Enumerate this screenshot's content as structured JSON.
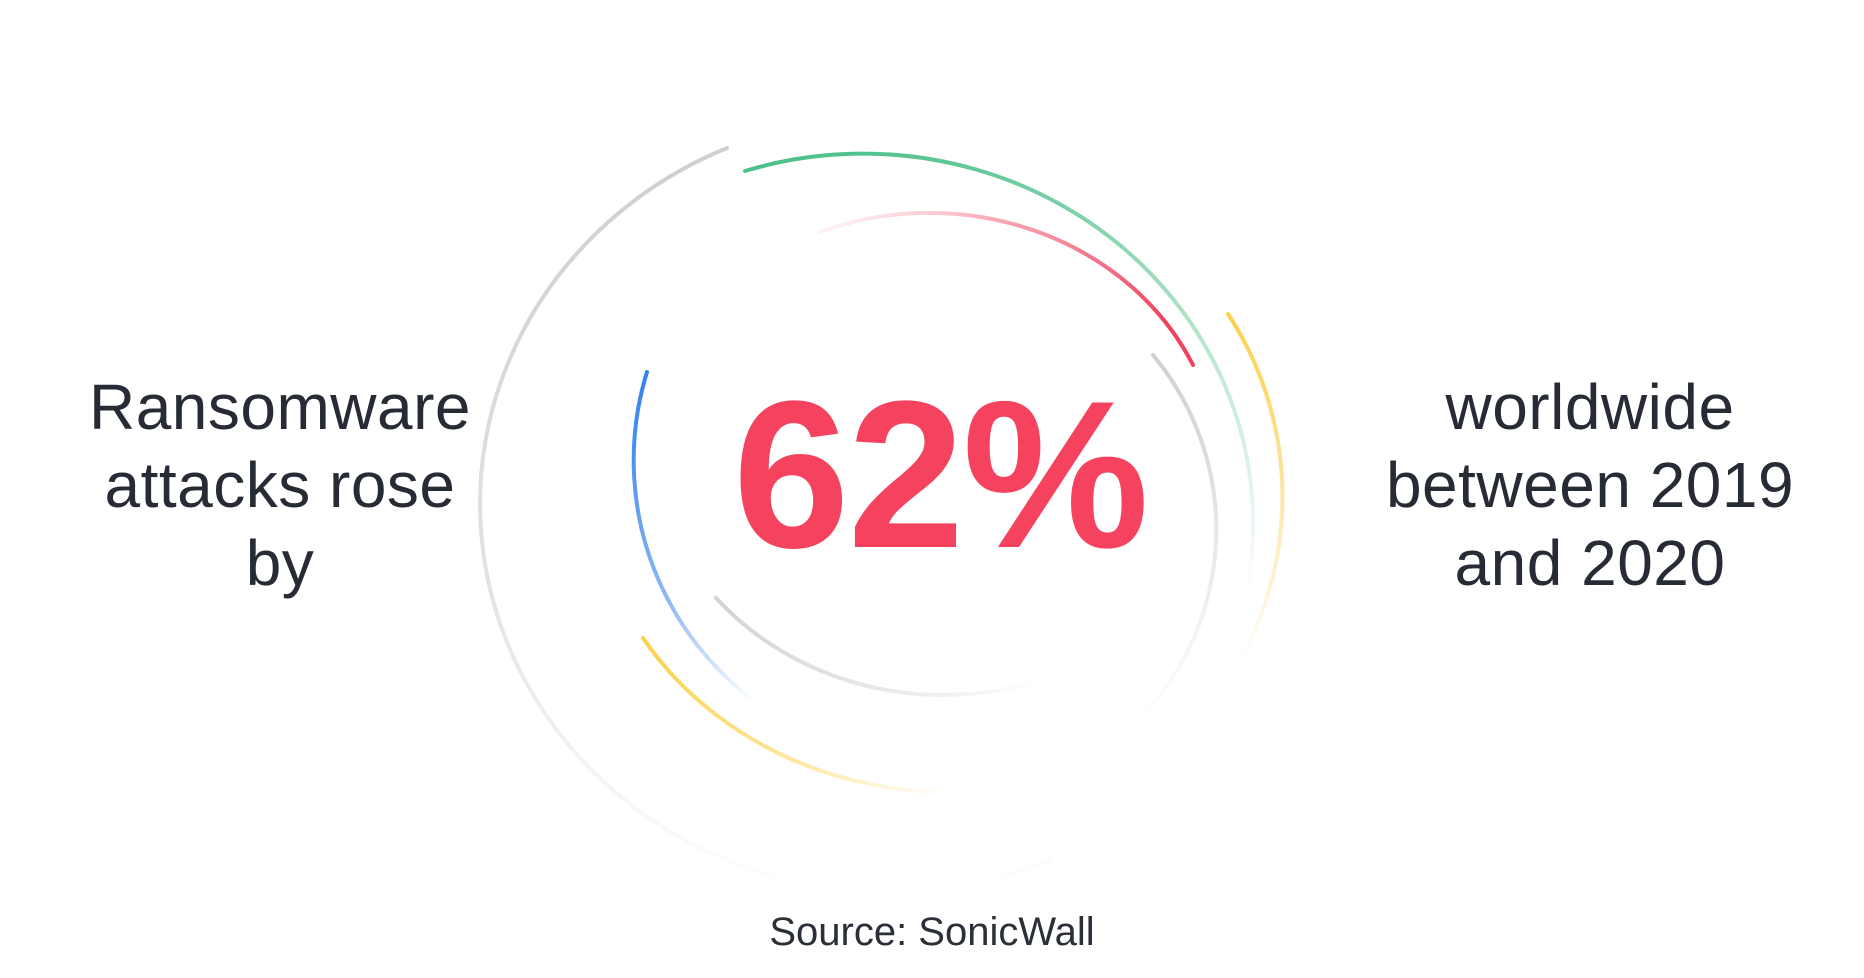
{
  "left_statement": {
    "line1": "Ransomware",
    "line2": "attacks rose",
    "line3": "by"
  },
  "headline_value": "62%",
  "right_statement": {
    "line1": "worldwide",
    "line2": "between 2019",
    "line3": "and 2020"
  },
  "source": "Source: SonicWall",
  "colors": {
    "accent_red": "#f5435f",
    "ring_green": "#47be87",
    "ring_red": "#f0415e",
    "ring_blue": "#2f80ed",
    "ring_yellow": "#fbd14b",
    "ring_gray": "#d3d3d3",
    "text": "#262b35"
  },
  "decorative_rings": [
    {
      "name": "outer-gray-ring",
      "color": "gray"
    },
    {
      "name": "outer-green-ring",
      "color": "green"
    },
    {
      "name": "inner-red-ring",
      "color": "red"
    },
    {
      "name": "inner-blue-ring",
      "color": "blue"
    },
    {
      "name": "yellow-ring",
      "color": "yellow"
    },
    {
      "name": "inner-gray-ring",
      "color": "gray"
    }
  ]
}
